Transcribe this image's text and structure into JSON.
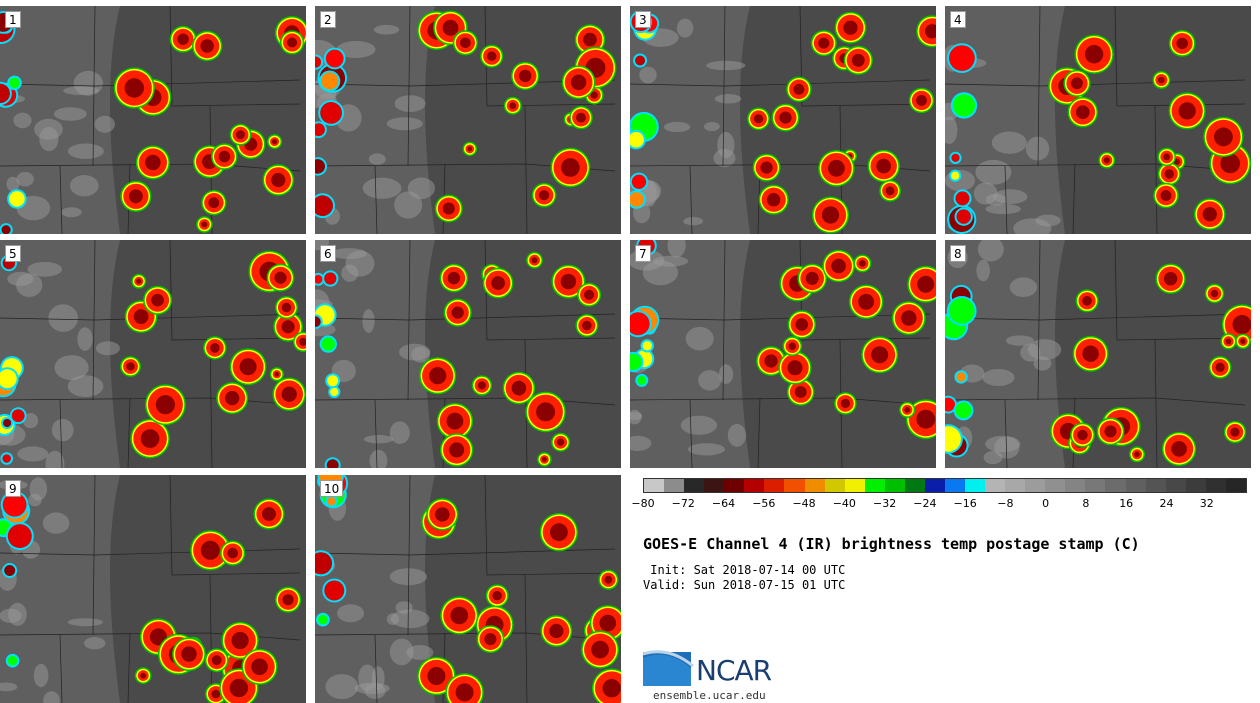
{
  "panels": [
    "1",
    "2",
    "3",
    "4",
    "5",
    "6",
    "7",
    "8",
    "9",
    "10"
  ],
  "colorbar": {
    "ticks": [
      "-80",
      "-72",
      "-64",
      "-56",
      "-48",
      "-40",
      "-32",
      "-24",
      "-16",
      "-8",
      "0",
      "8",
      "16",
      "24",
      "32"
    ],
    "colors": [
      "#c8c8c8",
      "#8c8c8c",
      "#282828",
      "#3c1414",
      "#6e0000",
      "#b40000",
      "#dc1e00",
      "#f05000",
      "#f08c00",
      "#d2c800",
      "#f0f000",
      "#00f000",
      "#00be00",
      "#007814",
      "#0a1eaa",
      "#0a78f0",
      "#00f0f0",
      "#b4b4b4",
      "#a8a8a8",
      "#9c9c9c",
      "#909090",
      "#848484",
      "#787878",
      "#6c6c6c",
      "#606060",
      "#545454",
      "#484848",
      "#3c3c3c",
      "#303030",
      "#262626"
    ]
  },
  "title": "GOES-E Channel 4 (IR) brightness temp postage stamp (C)",
  "init": " Init: Sat 2018-07-14 00 UTC",
  "valid": "Valid: Sun 2018-07-15 01 UTC",
  "logo": {
    "text": "NCAR",
    "site": "ensemble.ucar.edu",
    "color": "#1b3e72"
  }
}
